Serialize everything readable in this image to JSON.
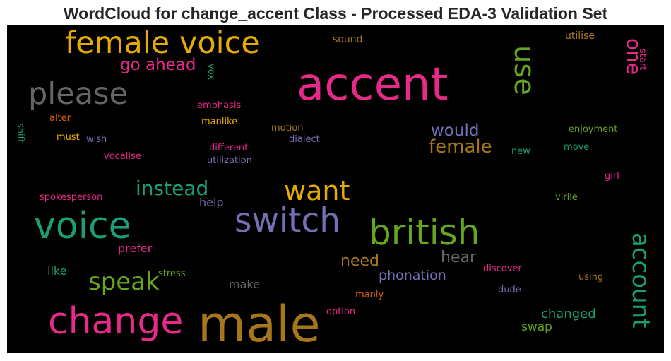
{
  "chart_data": {
    "type": "wordcloud",
    "title": "WordCloud for change_accent Class - Processed EDA-3 Validation Set",
    "background": "#000000",
    "words": [
      {
        "text": "accent",
        "color": "#e7298a"
      },
      {
        "text": "male",
        "color": "#a6761d"
      },
      {
        "text": "change",
        "color": "#e7298a"
      },
      {
        "text": "voice",
        "color": "#1b9e77"
      },
      {
        "text": "british",
        "color": "#66a61e"
      },
      {
        "text": "switch",
        "color": "#7570b3"
      },
      {
        "text": "female voice",
        "color": "#e6ab02"
      },
      {
        "text": "please",
        "color": "#666666"
      },
      {
        "text": "want",
        "color": "#e6ab02"
      },
      {
        "text": "use",
        "color": "#66a61e"
      },
      {
        "text": "account",
        "color": "#1b9e77"
      },
      {
        "text": "speak",
        "color": "#66a61e"
      },
      {
        "text": "instead",
        "color": "#1b9e77"
      },
      {
        "text": "female",
        "color": "#a6761d"
      },
      {
        "text": "one",
        "color": "#e7298a"
      },
      {
        "text": "would",
        "color": "#7570b3"
      },
      {
        "text": "go ahead",
        "color": "#e7298a"
      },
      {
        "text": "need",
        "color": "#a6761d"
      },
      {
        "text": "hear",
        "color": "#666666"
      },
      {
        "text": "phonation",
        "color": "#7570b3"
      },
      {
        "text": "changed",
        "color": "#1b9e77"
      },
      {
        "text": "swap",
        "color": "#66a61e"
      },
      {
        "text": "prefer",
        "color": "#e7298a"
      },
      {
        "text": "help",
        "color": "#7570b3"
      },
      {
        "text": "make",
        "color": "#666666"
      },
      {
        "text": "like",
        "color": "#1b9e77"
      },
      {
        "text": "sound",
        "color": "#a6761d"
      },
      {
        "text": "utilise",
        "color": "#a6761d"
      },
      {
        "text": "start",
        "color": "#e7298a"
      },
      {
        "text": "vox",
        "color": "#1b9e77"
      },
      {
        "text": "emphasis",
        "color": "#e7298a"
      },
      {
        "text": "shift",
        "color": "#1b9e77"
      },
      {
        "text": "alter",
        "color": "#d95f02"
      },
      {
        "text": "manlike",
        "color": "#e6ab02"
      },
      {
        "text": "motion",
        "color": "#a6761d"
      },
      {
        "text": "enjoyment",
        "color": "#66a61e"
      },
      {
        "text": "must",
        "color": "#e6ab02"
      },
      {
        "text": "wish",
        "color": "#7570b3"
      },
      {
        "text": "dialect",
        "color": "#7570b3"
      },
      {
        "text": "different",
        "color": "#e7298a"
      },
      {
        "text": "new",
        "color": "#1b9e77"
      },
      {
        "text": "move",
        "color": "#1b9e77"
      },
      {
        "text": "vocalise",
        "color": "#e7298a"
      },
      {
        "text": "utilization",
        "color": "#7570b3"
      },
      {
        "text": "girl",
        "color": "#e7298a"
      },
      {
        "text": "spokesperson",
        "color": "#e7298a"
      },
      {
        "text": "virile",
        "color": "#66a61e"
      },
      {
        "text": "stress",
        "color": "#66a61e"
      },
      {
        "text": "discover",
        "color": "#e7298a"
      },
      {
        "text": "using",
        "color": "#a6761d"
      },
      {
        "text": "manly",
        "color": "#d95f02"
      },
      {
        "text": "dude",
        "color": "#7570b3"
      },
      {
        "text": "option",
        "color": "#e7298a"
      }
    ]
  }
}
